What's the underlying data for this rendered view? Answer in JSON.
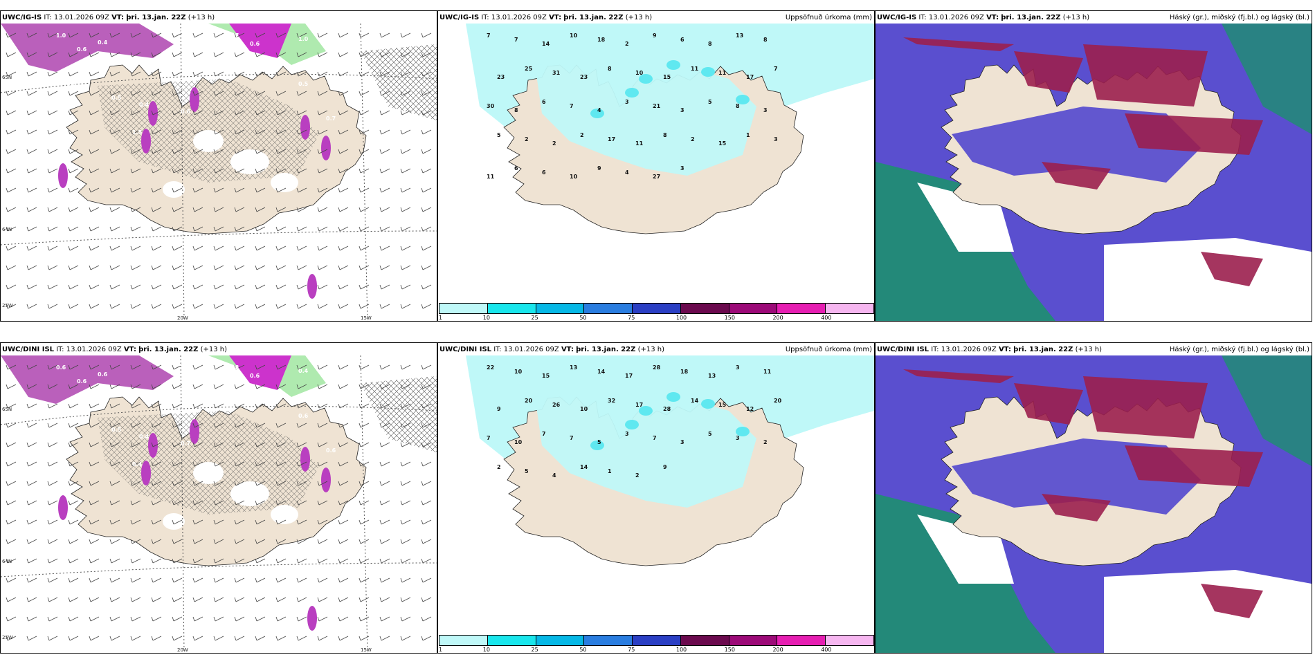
{
  "colors": {
    "land": "#efe3d3",
    "ocean": "#ffffff",
    "precip_light": "#bff8f8",
    "precip_mid": "#5fe8f0",
    "cloud_high": "#9b1f4e",
    "cloud_mid": "#5a4fcf",
    "cloud_low": "#1d8f6f",
    "snow": "#cc33cc"
  },
  "panels": [
    {
      "model": "UWC/IG-IS",
      "it_label": "IT:",
      "it": "13.01.2026 09Z",
      "vt_label": "VT:",
      "vt": "þri. 13.jan. 22Z",
      "lead": "(+13 h)",
      "right": "",
      "kind": "wind",
      "axis": {
        "lat1": "65N",
        "lat2": "64N",
        "lon1": "25W",
        "lon2": "20W",
        "lon3": "15W"
      },
      "labels": [
        "1.0",
        "0.6",
        "0.4",
        "0.4",
        "0.6",
        "0.7",
        "0.6",
        "1.0",
        "0.6",
        "0.5",
        "0.4",
        "0.6",
        "0.5",
        "1.5",
        "0.7",
        "0.6"
      ]
    },
    {
      "model": "UWC/IG-IS",
      "it_label": "IT:",
      "it": "13.01.2026 09Z",
      "vt_label": "VT:",
      "vt": "þri. 13.jan. 22Z",
      "lead": "(+13 h)",
      "right": "Uppsöfnuð úrkoma (mm)",
      "kind": "precip",
      "labels": [
        "7",
        "7",
        "14",
        "10",
        "18",
        "2",
        "9",
        "6",
        "8",
        "13",
        "8",
        "23",
        "25",
        "31",
        "23",
        "8",
        "10",
        "15",
        "11",
        "11",
        "17",
        "7",
        "30",
        "8",
        "6",
        "7",
        "4",
        "3",
        "21",
        "3",
        "5",
        "8",
        "3",
        "5",
        "2",
        "2",
        "2",
        "17",
        "11",
        "8",
        "2",
        "15",
        "1",
        "3",
        "11",
        "6",
        "6",
        "10",
        "9",
        "4",
        "27",
        "3"
      ]
    },
    {
      "model": "UWC/IG-IS",
      "it_label": "IT:",
      "it": "13.01.2026 09Z",
      "vt_label": "VT:",
      "vt": "þri. 13.jan. 22Z",
      "lead": "(+13 h)",
      "right": "Háský (gr.), miðský (fj.bl.) og lágský (bl.)",
      "kind": "cloud",
      "labels": []
    },
    {
      "model": "UWC/DINI ISL",
      "it_label": "IT:",
      "it": "13.01.2026 09Z",
      "vt_label": "VT:",
      "vt": "þri. 13.jan. 22Z",
      "lead": "(+13 h)",
      "right": "",
      "kind": "wind",
      "axis": {
        "lat1": "65N",
        "lat2": "64N",
        "lon1": "25W",
        "lon2": "20W",
        "lon3": "15W"
      },
      "labels": [
        "0.6",
        "0.6",
        "0.6",
        "2.2",
        "3.5",
        "1.8",
        "0.6",
        "0.4",
        "1.1",
        "0.5",
        "0.4",
        "0.7",
        "0.6",
        "0.4",
        "0.6",
        "1.2"
      ]
    },
    {
      "model": "UWC/DINI ISL",
      "it_label": "IT:",
      "it": "13.01.2026 09Z",
      "vt_label": "VT:",
      "vt": "þri. 13.jan. 22Z",
      "lead": "(+13 h)",
      "right": "Uppsöfnuð úrkoma (mm)",
      "kind": "precip",
      "labels": [
        "22",
        "10",
        "15",
        "13",
        "14",
        "17",
        "28",
        "18",
        "13",
        "3",
        "11",
        "9",
        "20",
        "26",
        "10",
        "32",
        "17",
        "28",
        "14",
        "15",
        "12",
        "20",
        "7",
        "10",
        "7",
        "7",
        "5",
        "3",
        "7",
        "3",
        "5",
        "3",
        "2",
        "2",
        "5",
        "4",
        "14",
        "1",
        "2",
        "9"
      ]
    },
    {
      "model": "UWC/DINI ISL",
      "it_label": "IT:",
      "it": "13.01.2026 09Z",
      "vt_label": "VT:",
      "vt": "þri. 13.jan. 22Z",
      "lead": "(+13 h)",
      "right": "Háský (gr.), miðský (fj.bl.) og lágský (bl.)",
      "kind": "cloud",
      "labels": []
    }
  ],
  "colorbar": {
    "ticks": [
      "1",
      "10",
      "25",
      "50",
      "75",
      "100",
      "150",
      "200",
      "400"
    ],
    "colors": [
      "#bff8f8",
      "#19e6ec",
      "#06b8e6",
      "#2a7de0",
      "#2b3fc4",
      "#6b0a4e",
      "#9c0a78",
      "#e61eb2",
      "#f6b6f0"
    ]
  }
}
